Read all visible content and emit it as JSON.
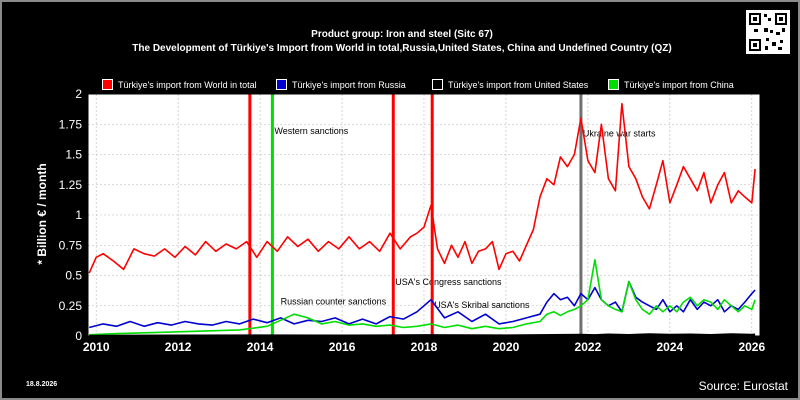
{
  "header": {
    "line1": "Product group: Iron and steel (Sitc 67)",
    "line2": "The Development of Türkiye's Import from World in total,Russia,United States, China and Undefined Country (QZ)"
  },
  "footer": {
    "date": "18.8.2026",
    "source": "Source: Eurostat"
  },
  "qr_icon": "qr-code",
  "chart_data": {
    "type": "line",
    "ylabel": "* Billion € / month",
    "ylim": [
      0,
      2
    ],
    "yticks": [
      "0",
      "0.25",
      "0.5",
      "0.75",
      "1",
      "1.25",
      "1.5",
      "1.75",
      "2"
    ],
    "xlim": [
      2009.8,
      2026.2
    ],
    "xticks": [
      "2010",
      "2012",
      "2014",
      "2016",
      "2018",
      "2020",
      "2022",
      "2024",
      "2026"
    ],
    "grid": true,
    "legend_position": "top",
    "colors": {
      "background": "#000000",
      "plot": "#ffffff",
      "grid": "#b8b8b8"
    },
    "series": [
      {
        "name": "Türkiye's import from World in total",
        "color": "#ff0000",
        "x": [
          2009.83,
          2010.0,
          2010.17,
          2010.42,
          2010.67,
          2010.92,
          2011.17,
          2011.42,
          2011.67,
          2011.92,
          2012.17,
          2012.42,
          2012.67,
          2012.92,
          2013.17,
          2013.42,
          2013.67,
          2013.92,
          2014.17,
          2014.42,
          2014.67,
          2014.92,
          2015.17,
          2015.42,
          2015.67,
          2015.92,
          2016.17,
          2016.42,
          2016.67,
          2016.92,
          2017.17,
          2017.42,
          2017.67,
          2017.83,
          2018.0,
          2018.17,
          2018.33,
          2018.5,
          2018.67,
          2018.83,
          2019.0,
          2019.17,
          2019.33,
          2019.5,
          2019.67,
          2019.83,
          2020.0,
          2020.17,
          2020.33,
          2020.5,
          2020.67,
          2020.83,
          2021.0,
          2021.17,
          2021.33,
          2021.5,
          2021.67,
          2021.83,
          2022.0,
          2022.17,
          2022.33,
          2022.5,
          2022.67,
          2022.83,
          2023.0,
          2023.17,
          2023.33,
          2023.5,
          2023.67,
          2023.83,
          2024.0,
          2024.17,
          2024.33,
          2024.5,
          2024.67,
          2024.83,
          2025.0,
          2025.17,
          2025.33,
          2025.5,
          2025.67,
          2025.83,
          2026.0,
          2026.08
        ],
        "values": [
          0.52,
          0.65,
          0.68,
          0.62,
          0.55,
          0.72,
          0.68,
          0.66,
          0.72,
          0.65,
          0.74,
          0.67,
          0.78,
          0.7,
          0.76,
          0.72,
          0.78,
          0.65,
          0.78,
          0.7,
          0.82,
          0.74,
          0.8,
          0.7,
          0.78,
          0.72,
          0.82,
          0.72,
          0.78,
          0.7,
          0.85,
          0.72,
          0.82,
          0.85,
          0.9,
          1.08,
          0.72,
          0.6,
          0.75,
          0.65,
          0.78,
          0.6,
          0.7,
          0.72,
          0.78,
          0.55,
          0.68,
          0.7,
          0.62,
          0.75,
          0.88,
          1.15,
          1.3,
          1.25,
          1.48,
          1.4,
          1.5,
          1.8,
          1.45,
          1.35,
          1.75,
          1.3,
          1.2,
          1.92,
          1.4,
          1.3,
          1.15,
          1.05,
          1.25,
          1.45,
          1.1,
          1.25,
          1.4,
          1.3,
          1.2,
          1.35,
          1.1,
          1.25,
          1.35,
          1.1,
          1.2,
          1.15,
          1.1,
          1.38
        ]
      },
      {
        "name": "Türkiye's import from Russia",
        "color": "#0000d0",
        "x": [
          2009.83,
          2010.17,
          2010.5,
          2010.83,
          2011.17,
          2011.5,
          2011.83,
          2012.17,
          2012.5,
          2012.83,
          2013.17,
          2013.5,
          2013.83,
          2014.17,
          2014.5,
          2014.83,
          2015.17,
          2015.5,
          2015.83,
          2016.17,
          2016.5,
          2016.83,
          2017.17,
          2017.5,
          2017.83,
          2018.17,
          2018.5,
          2018.83,
          2019.17,
          2019.5,
          2019.83,
          2020.17,
          2020.5,
          2020.83,
          2021.0,
          2021.17,
          2021.33,
          2021.5,
          2021.67,
          2021.83,
          2022.0,
          2022.17,
          2022.33,
          2022.5,
          2022.67,
          2022.83,
          2023.0,
          2023.17,
          2023.33,
          2023.5,
          2023.67,
          2023.83,
          2024.0,
          2024.17,
          2024.33,
          2024.5,
          2024.67,
          2024.83,
          2025.0,
          2025.17,
          2025.33,
          2025.5,
          2025.67,
          2025.83,
          2026.0,
          2026.08
        ],
        "values": [
          0.07,
          0.1,
          0.08,
          0.12,
          0.08,
          0.11,
          0.09,
          0.12,
          0.1,
          0.09,
          0.12,
          0.1,
          0.14,
          0.11,
          0.15,
          0.1,
          0.13,
          0.12,
          0.15,
          0.1,
          0.14,
          0.1,
          0.16,
          0.14,
          0.2,
          0.3,
          0.15,
          0.2,
          0.12,
          0.18,
          0.1,
          0.12,
          0.15,
          0.18,
          0.28,
          0.35,
          0.3,
          0.32,
          0.25,
          0.35,
          0.3,
          0.4,
          0.3,
          0.25,
          0.28,
          0.2,
          0.45,
          0.32,
          0.28,
          0.25,
          0.22,
          0.3,
          0.2,
          0.25,
          0.2,
          0.3,
          0.22,
          0.28,
          0.25,
          0.3,
          0.2,
          0.25,
          0.22,
          0.28,
          0.35,
          0.38
        ]
      },
      {
        "name": "Türkiye's import from United States",
        "color": "#000000",
        "x": [
          2009.83,
          2012.0,
          2014.0,
          2016.0,
          2018.0,
          2020.0,
          2021.83,
          2022.17,
          2022.5,
          2023.0,
          2023.5,
          2024.0,
          2024.5,
          2025.0,
          2025.5,
          2026.0,
          2026.08
        ],
        "values": [
          0,
          0.002,
          0.003,
          0.002,
          0.005,
          0.003,
          0.008,
          0.005,
          0.01,
          0.006,
          0.012,
          0.008,
          0.01,
          0.006,
          0.012,
          0.008,
          0.01
        ]
      },
      {
        "name": "Türkiye's import from China",
        "color": "#00dd00",
        "x": [
          2009.83,
          2010.5,
          2011.5,
          2012.5,
          2013.5,
          2014.17,
          2014.5,
          2014.83,
          2015.17,
          2015.5,
          2015.83,
          2016.17,
          2016.5,
          2016.83,
          2017.17,
          2017.5,
          2017.83,
          2018.17,
          2018.5,
          2018.83,
          2019.17,
          2019.5,
          2019.83,
          2020.17,
          2020.5,
          2020.83,
          2021.0,
          2021.17,
          2021.33,
          2021.5,
          2021.67,
          2021.83,
          2022.0,
          2022.17,
          2022.33,
          2022.5,
          2022.67,
          2022.83,
          2023.0,
          2023.17,
          2023.33,
          2023.5,
          2023.67,
          2023.83,
          2024.0,
          2024.17,
          2024.33,
          2024.5,
          2024.67,
          2024.83,
          2025.0,
          2025.17,
          2025.33,
          2025.5,
          2025.67,
          2025.83,
          2026.0,
          2026.08
        ],
        "values": [
          0.01,
          0.02,
          0.03,
          0.04,
          0.05,
          0.08,
          0.13,
          0.18,
          0.15,
          0.1,
          0.12,
          0.09,
          0.1,
          0.08,
          0.09,
          0.07,
          0.08,
          0.1,
          0.07,
          0.09,
          0.06,
          0.08,
          0.06,
          0.07,
          0.1,
          0.12,
          0.18,
          0.2,
          0.17,
          0.2,
          0.22,
          0.25,
          0.3,
          0.63,
          0.3,
          0.25,
          0.22,
          0.2,
          0.45,
          0.3,
          0.22,
          0.18,
          0.25,
          0.2,
          0.25,
          0.2,
          0.28,
          0.32,
          0.25,
          0.3,
          0.28,
          0.22,
          0.3,
          0.25,
          0.2,
          0.25,
          0.22,
          0.3
        ]
      }
    ],
    "events": [
      {
        "x": 2013.75,
        "color": "#ff0000",
        "label": ""
      },
      {
        "x": 2014.3,
        "color": "#00dd00",
        "label": "Western sanctions",
        "label_y": 1.67
      },
      {
        "x": 2017.25,
        "color": "#ff0000",
        "label": "USA's Congress sanctions",
        "label_y": 0.42
      },
      {
        "x": 2018.2,
        "color": "#ff0000",
        "label": "USA's Skribal sanctions",
        "label_y": 0.23
      },
      {
        "x": 2021.83,
        "color": "#707070",
        "label": "Ukraine war starts",
        "label_y": 1.65
      }
    ],
    "annotations": [
      {
        "text": "Russian counter sanctions",
        "x": 2014.5,
        "y": 0.26
      }
    ]
  }
}
